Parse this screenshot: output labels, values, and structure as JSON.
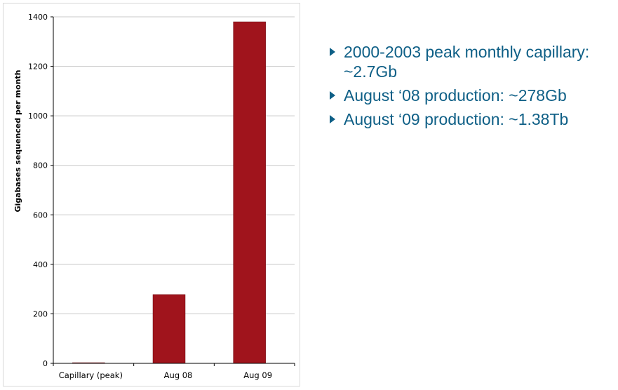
{
  "chart_data": {
    "type": "bar",
    "categories": [
      "Capillary (peak)",
      "Aug 08",
      "Aug 09"
    ],
    "values": [
      2.7,
      278,
      1380
    ],
    "title": "",
    "xlabel": "",
    "ylabel": "Gigabases sequenced per month",
    "ylim": [
      0,
      1400
    ],
    "yticks": [
      0,
      200,
      400,
      600,
      800,
      1000,
      1200,
      1400
    ],
    "grid": true,
    "legend": "none",
    "bar_color": "#a0141c"
  },
  "bullets": [
    "2000-2003 peak monthly capillary: ~2.7Gb",
    "August ‘08 production: ~278Gb",
    "August ‘09 production: ~1.38Tb"
  ],
  "colors": {
    "bullet_text": "#0e5f86",
    "gridline": "#c8c8c8"
  }
}
